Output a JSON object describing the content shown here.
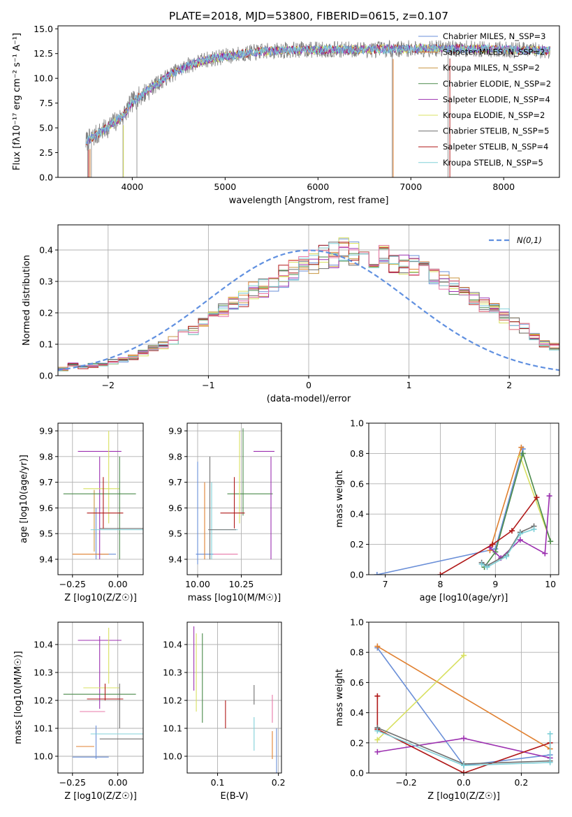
{
  "colors": {
    "chabrier_miles": "#6a8fd8",
    "salpeter_miles": "#e08030",
    "kroupa_miles": "#c89640",
    "chabrier_elodie": "#4a8a4a",
    "salpeter_elodie": "#9c30b0",
    "kroupa_elodie": "#d8e060",
    "chabrier_stelib": "#707070",
    "salpeter_stelib": "#b01818",
    "kroupa_stelib": "#80d0d8",
    "gauss": "#6090e0",
    "pink": "#e878a8"
  },
  "chart_data": [
    {
      "id": "spectrum",
      "type": "line",
      "title": "PLATE=2018, MJD=53800, FIBERID=0615, z=0.107",
      "xlabel": "wavelength [Angstrom, rest frame]",
      "ylabel": "Flux [fλ10⁻¹⁷ erg cm⁻² s⁻¹ A⁻¹]",
      "xlim": [
        3200,
        8600
      ],
      "ylim": [
        0,
        15.3
      ],
      "xticks": [
        4000,
        5000,
        6000,
        7000,
        8000
      ],
      "yticks": [
        0.0,
        2.5,
        5.0,
        7.5,
        10.0,
        12.5,
        15.0
      ],
      "continuum": {
        "x": [
          3500,
          3700,
          3900,
          4000,
          4200,
          4400,
          4600,
          4800,
          5000,
          5200,
          5400,
          5600,
          5800,
          6000,
          6200,
          6500,
          7000,
          7500,
          8000,
          8500
        ],
        "y": [
          3.6,
          4.8,
          6.2,
          7.6,
          9.0,
          10.3,
          11.3,
          11.9,
          12.2,
          12.5,
          12.7,
          12.8,
          12.9,
          12.9,
          12.9,
          12.9,
          13.0,
          13.0,
          12.9,
          12.8
        ]
      },
      "legend": [
        {
          "label": "Chabrier MILES, N_SSP=3",
          "color_key": "chabrier_miles"
        },
        {
          "label": "Salpeter MILES, N_SSP=2",
          "color_key": "salpeter_miles"
        },
        {
          "label": "Kroupa MILES, N_SSP=2",
          "color_key": "kroupa_miles"
        },
        {
          "label": "Chabrier ELODIE, N_SSP=2",
          "color_key": "chabrier_elodie"
        },
        {
          "label": "Salpeter ELODIE, N_SSP=4",
          "color_key": "salpeter_elodie"
        },
        {
          "label": "Kroupa ELODIE, N_SSP=2",
          "color_key": "kroupa_elodie"
        },
        {
          "label": "Chabrier STELIB, N_SSP=5",
          "color_key": "chabrier_stelib"
        },
        {
          "label": "Salpeter STELIB, N_SSP=4",
          "color_key": "salpeter_stelib"
        },
        {
          "label": "Kroupa STELIB, N_SSP=5",
          "color_key": "kroupa_stelib"
        }
      ],
      "legend_placement": "upper right",
      "grid": false
    },
    {
      "id": "residuals",
      "type": "histogram",
      "xlabel": "(data-model)/error",
      "ylabel": "Normed distribution",
      "xlim": [
        -2.5,
        2.5
      ],
      "ylim": [
        0,
        0.48
      ],
      "xticks": [
        -2,
        -1,
        0,
        1,
        2
      ],
      "yticks": [
        0.0,
        0.1,
        0.2,
        0.3,
        0.4
      ],
      "bin_width": 0.1,
      "bin_start": -2.5,
      "mean_values": [
        0.022,
        0.035,
        0.03,
        0.032,
        0.038,
        0.045,
        0.052,
        0.06,
        0.072,
        0.085,
        0.098,
        0.11,
        0.13,
        0.148,
        0.17,
        0.19,
        0.21,
        0.23,
        0.25,
        0.265,
        0.28,
        0.3,
        0.315,
        0.33,
        0.345,
        0.36,
        0.375,
        0.39,
        0.4,
        0.39,
        0.39,
        0.385,
        0.38,
        0.36,
        0.35,
        0.345,
        0.33,
        0.315,
        0.3,
        0.28,
        0.26,
        0.245,
        0.225,
        0.21,
        0.19,
        0.17,
        0.15,
        0.125,
        0.105,
        0.09,
        0.078,
        0.072,
        0.065,
        0.06,
        0.055,
        0.048,
        0.042,
        0.04,
        0.035,
        0.032,
        0.03,
        0.03,
        0.028,
        0.025,
        0.02,
        0.018,
        0.018,
        0.016,
        0.014,
        0.013,
        0.012,
        0.012,
        0.012,
        0.012,
        0.012,
        0.012,
        0.012,
        0.012,
        0.012,
        0.012
      ],
      "series_colors": [
        "chabrier_miles",
        "salpeter_miles",
        "kroupa_miles",
        "chabrier_elodie",
        "salpeter_elodie",
        "kroupa_elodie",
        "chabrier_stelib",
        "salpeter_stelib",
        "kroupa_stelib",
        "pink"
      ],
      "gaussian": {
        "label": "N(0,1)",
        "color_key": "gauss",
        "style": "dashed"
      },
      "legend_placement": "upper right",
      "grid": true
    },
    {
      "id": "age_vs_Z",
      "type": "errorbar",
      "xlabel": "Z [log10(Z/Z☉)]",
      "ylabel": "age  [log10(age/yr)]",
      "xlim": [
        -0.33,
        0.14
      ],
      "ylim": [
        9.34,
        9.93
      ],
      "xticks": [
        -0.25,
        0.0
      ],
      "xticklabels": [
        "−0.25",
        "0.00"
      ],
      "yticks": [
        9.4,
        9.5,
        9.6,
        9.7,
        9.8,
        9.9
      ],
      "points": [
        {
          "color_key": "chabrier_miles",
          "x": -0.06,
          "xerr": 0.05,
          "y": 9.42,
          "yerr": 0.0
        },
        {
          "color_key": "chabrier_miles",
          "x": -0.12,
          "xerr": 0.0,
          "y": 9.5,
          "yerr": 0.1
        },
        {
          "color_key": "salpeter_miles",
          "x": -0.15,
          "xerr": 0.1,
          "y": 9.42,
          "yerr": 0.0
        },
        {
          "color_key": "kroupa_miles",
          "x": -0.13,
          "xerr": 0.0,
          "y": 9.55,
          "yerr": 0.12
        },
        {
          "color_key": "salpeter_elodie",
          "x": -0.1,
          "xerr": 0.12,
          "y": 9.82,
          "yerr": 0.0
        },
        {
          "color_key": "salpeter_elodie",
          "x": -0.1,
          "xerr": 0.0,
          "y": 9.6,
          "yerr": 0.2
        },
        {
          "color_key": "kroupa_elodie",
          "x": -0.05,
          "xerr": 0.0,
          "y": 9.72,
          "yerr": 0.18
        },
        {
          "color_key": "kroupa_elodie",
          "x": -0.09,
          "xerr": 0.1,
          "y": 9.675,
          "yerr": 0.0
        },
        {
          "color_key": "chabrier_elodie",
          "x": -0.1,
          "xerr": 0.2,
          "y": 9.655,
          "yerr": 0.0
        },
        {
          "color_key": "chabrier_elodie",
          "x": 0.01,
          "xerr": 0.0,
          "y": 9.6,
          "yerr": 0.2
        },
        {
          "color_key": "chabrier_stelib",
          "x": 0.02,
          "xerr": 0.12,
          "y": 9.52,
          "yerr": 0.0
        },
        {
          "color_key": "salpeter_stelib",
          "x": -0.07,
          "xerr": 0.1,
          "y": 9.58,
          "yerr": 0.0
        },
        {
          "color_key": "salpeter_stelib",
          "x": -0.08,
          "xerr": 0.0,
          "y": 9.62,
          "yerr": 0.1
        },
        {
          "color_key": "kroupa_stelib",
          "x": 0.0,
          "xerr": 0.15,
          "y": 9.515,
          "yerr": 0.0
        }
      ],
      "grid": true
    },
    {
      "id": "age_vs_mass",
      "type": "errorbar",
      "xlabel": "mass [log10(M/M☉)]",
      "ylabel": "",
      "xlim": [
        9.94,
        10.48
      ],
      "ylim": [
        9.34,
        9.93
      ],
      "xticks": [
        10.0,
        10.25
      ],
      "xticklabels": [
        "10.00",
        "10.25"
      ],
      "yticks": [
        9.4,
        9.5,
        9.6,
        9.7,
        9.8,
        9.9
      ],
      "points": [
        {
          "color_key": "chabrier_miles",
          "x": 10.0,
          "xerr": 0.0,
          "y": 9.58,
          "yerr": 0.2
        },
        {
          "color_key": "chabrier_miles",
          "x": 10.04,
          "xerr": 0.05,
          "y": 9.42,
          "yerr": 0.0
        },
        {
          "color_key": "salpeter_miles",
          "x": 10.04,
          "xerr": 0.0,
          "y": 9.55,
          "yerr": 0.15
        },
        {
          "color_key": "kroupa_stelib",
          "x": 10.08,
          "xerr": 0.0,
          "y": 9.55,
          "yerr": 0.15
        },
        {
          "color_key": "pink",
          "x": 10.16,
          "xerr": 0.07,
          "y": 9.42,
          "yerr": 0.0
        },
        {
          "color_key": "chabrier_stelib",
          "x": 10.07,
          "xerr": 0.0,
          "y": 9.6,
          "yerr": 0.2
        },
        {
          "color_key": "chabrier_elodie",
          "x": 10.26,
          "xerr": 0.0,
          "y": 9.74,
          "yerr": 0.17
        },
        {
          "color_key": "chabrier_elodie",
          "x": 10.3,
          "xerr": 0.13,
          "y": 9.655,
          "yerr": 0.0
        },
        {
          "color_key": "kroupa_elodie",
          "x": 10.24,
          "xerr": 0.0,
          "y": 9.72,
          "yerr": 0.18
        },
        {
          "color_key": "salpeter_elodie",
          "x": 10.42,
          "xerr": 0.0,
          "y": 9.6,
          "yerr": 0.2
        },
        {
          "color_key": "salpeter_elodie",
          "x": 10.38,
          "xerr": 0.06,
          "y": 9.82,
          "yerr": 0.0
        },
        {
          "color_key": "salpeter_stelib",
          "x": 10.21,
          "xerr": 0.0,
          "y": 9.62,
          "yerr": 0.1
        },
        {
          "color_key": "salpeter_stelib",
          "x": 10.2,
          "xerr": 0.07,
          "y": 9.58,
          "yerr": 0.0
        },
        {
          "color_key": "kroupa_stelib",
          "x": 10.15,
          "xerr": 0.08,
          "y": 9.515,
          "yerr": 0.0
        },
        {
          "color_key": "chabrier_stelib",
          "x": 10.14,
          "xerr": 0.08,
          "y": 9.515,
          "yerr": 0.0
        }
      ],
      "grid": true
    },
    {
      "id": "weight_vs_age",
      "type": "line",
      "xlabel": "age  [log10(age/yr)]",
      "ylabel": "mass weight",
      "xlim": [
        6.7,
        10.15
      ],
      "ylim": [
        0,
        1.0
      ],
      "xticks": [
        7,
        8,
        9,
        10
      ],
      "yticks": [
        0.0,
        0.2,
        0.4,
        0.6,
        0.8,
        1.0
      ],
      "series": [
        {
          "color_key": "chabrier_miles",
          "x": [
            6.85,
            9.0,
            9.5
          ],
          "y": [
            0.0,
            0.17,
            0.83
          ]
        },
        {
          "color_key": "salpeter_miles",
          "x": [
            8.9,
            9.47
          ],
          "y": [
            0.16,
            0.84
          ]
        },
        {
          "color_key": "kroupa_elodie",
          "x": [
            9.45,
            10.0
          ],
          "y": [
            0.78,
            0.22
          ]
        },
        {
          "color_key": "chabrier_elodie",
          "x": [
            8.8,
            9.0,
            9.5,
            10.0
          ],
          "y": [
            0.05,
            0.15,
            0.8,
            0.22
          ]
        },
        {
          "color_key": "salpeter_elodie",
          "x": [
            8.9,
            9.1,
            9.45,
            9.9,
            9.98
          ],
          "y": [
            0.18,
            0.11,
            0.23,
            0.14,
            0.52
          ]
        },
        {
          "color_key": "salpeter_stelib",
          "x": [
            8.0,
            8.95,
            9.3,
            9.75
          ],
          "y": [
            0.0,
            0.2,
            0.29,
            0.51
          ]
        },
        {
          "color_key": "chabrier_stelib",
          "x": [
            8.75,
            8.85,
            9.2,
            9.45,
            9.7
          ],
          "y": [
            0.08,
            0.06,
            0.13,
            0.28,
            0.32
          ]
        },
        {
          "color_key": "kroupa_stelib",
          "x": [
            8.75,
            8.85,
            9.2,
            9.45,
            9.7
          ],
          "y": [
            0.07,
            0.05,
            0.12,
            0.27,
            0.3
          ]
        }
      ],
      "grid": true
    },
    {
      "id": "mass_vs_Z",
      "type": "errorbar",
      "xlabel": "Z [log10(Z/Z☉)]",
      "ylabel": "mass [log10(M/M☉)]",
      "xlim": [
        -0.33,
        0.14
      ],
      "ylim": [
        9.94,
        10.48
      ],
      "xticks": [
        -0.25,
        0.0
      ],
      "xticklabels": [
        "−0.25",
        "0.00"
      ],
      "yticks": [
        10.0,
        10.1,
        10.2,
        10.3,
        10.4
      ],
      "points": [
        {
          "color_key": "chabrier_miles",
          "x": -0.15,
          "xerr": 0.1,
          "y": 9.997,
          "yerr": 0.0
        },
        {
          "color_key": "chabrier_miles",
          "x": -0.12,
          "xerr": 0.0,
          "y": 10.05,
          "yerr": 0.06
        },
        {
          "color_key": "salpeter_miles",
          "x": -0.18,
          "xerr": 0.05,
          "y": 10.035,
          "yerr": 0.0
        },
        {
          "color_key": "pink",
          "x": -0.14,
          "xerr": 0.07,
          "y": 10.16,
          "yerr": 0.0
        },
        {
          "color_key": "salpeter_elodie",
          "x": -0.1,
          "xerr": 0.12,
          "y": 10.415,
          "yerr": 0.0
        },
        {
          "color_key": "salpeter_elodie",
          "x": -0.1,
          "xerr": 0.0,
          "y": 10.3,
          "yerr": 0.13
        },
        {
          "color_key": "kroupa_elodie",
          "x": -0.05,
          "xerr": 0.0,
          "y": 10.36,
          "yerr": 0.1
        },
        {
          "color_key": "kroupa_elodie",
          "x": -0.09,
          "xerr": 0.1,
          "y": 10.245,
          "yerr": 0.0
        },
        {
          "color_key": "chabrier_elodie",
          "x": -0.1,
          "xerr": 0.2,
          "y": 10.222,
          "yerr": 0.0
        },
        {
          "color_key": "chabrier_stelib",
          "x": 0.02,
          "xerr": 0.12,
          "y": 10.062,
          "yerr": 0.0
        },
        {
          "color_key": "chabrier_stelib",
          "x": 0.01,
          "xerr": 0.0,
          "y": 10.18,
          "yerr": 0.08
        },
        {
          "color_key": "salpeter_stelib",
          "x": -0.07,
          "xerr": 0.1,
          "y": 10.205,
          "yerr": 0.0
        },
        {
          "color_key": "salpeter_stelib",
          "x": -0.07,
          "xerr": 0.0,
          "y": 10.23,
          "yerr": 0.03
        },
        {
          "color_key": "kroupa_stelib",
          "x": 0.0,
          "xerr": 0.15,
          "y": 10.08,
          "yerr": 0.0
        }
      ],
      "grid": true
    },
    {
      "id": "mass_vs_ebv",
      "type": "errorbar",
      "xlabel": "E(B-V)",
      "ylabel": "",
      "xlim": [
        0.05,
        0.205
      ],
      "ylim": [
        9.94,
        10.48
      ],
      "xticks": [
        0.1,
        0.2
      ],
      "xticklabels": [
        "0.1",
        "0.2"
      ],
      "yticks": [
        10.0,
        10.1,
        10.2,
        10.3,
        10.4
      ],
      "points": [
        {
          "color_key": "salpeter_elodie",
          "x": 0.061,
          "xerr": 0.0,
          "y": 10.35,
          "yerr": 0.115
        },
        {
          "color_key": "kroupa_elodie",
          "x": 0.065,
          "xerr": 0.0,
          "y": 10.3,
          "yerr": 0.14
        },
        {
          "color_key": "chabrier_elodie",
          "x": 0.075,
          "xerr": 0.0,
          "y": 10.28,
          "yerr": 0.16
        },
        {
          "color_key": "salpeter_stelib",
          "x": 0.113,
          "xerr": 0.0,
          "y": 10.15,
          "yerr": 0.05
        },
        {
          "color_key": "chabrier_stelib",
          "x": 0.16,
          "xerr": 0.0,
          "y": 10.22,
          "yerr": 0.035
        },
        {
          "color_key": "kroupa_stelib",
          "x": 0.16,
          "xerr": 0.0,
          "y": 10.08,
          "yerr": 0.06
        },
        {
          "color_key": "salpeter_miles",
          "x": 0.19,
          "xerr": 0.0,
          "y": 10.04,
          "yerr": 0.05
        },
        {
          "color_key": "pink",
          "x": 0.19,
          "xerr": 0.0,
          "y": 10.17,
          "yerr": 0.05
        },
        {
          "color_key": "chabrier_miles",
          "x": 0.197,
          "xerr": 0.0,
          "y": 10.0,
          "yerr": 0.1
        }
      ],
      "grid": true
    },
    {
      "id": "weight_vs_Z",
      "type": "line",
      "xlabel": "Z [log10(Z/Z☉)]",
      "ylabel": "mass weight",
      "xlim": [
        -0.33,
        0.33
      ],
      "ylim": [
        0,
        1.0
      ],
      "xticks": [
        -0.2,
        0.0,
        0.2
      ],
      "xticklabels": [
        "−0.2",
        "0.0",
        "0.2"
      ],
      "yticks": [
        0.0,
        0.2,
        0.4,
        0.6,
        0.8,
        1.0
      ],
      "series": [
        {
          "color_key": "chabrier_miles",
          "x": [
            -0.3,
            0.0,
            0.3
          ],
          "y": [
            0.83,
            0.05,
            0.12
          ]
        },
        {
          "color_key": "salpeter_miles",
          "x": [
            -0.3,
            0.3
          ],
          "y": [
            0.84,
            0.16
          ]
        },
        {
          "color_key": "kroupa_elodie",
          "x": [
            -0.3,
            0.0
          ],
          "y": [
            0.22,
            0.78
          ]
        },
        {
          "color_key": "salpeter_elodie",
          "x": [
            -0.3,
            0.0,
            0.3
          ],
          "y": [
            0.14,
            0.23,
            0.1
          ]
        },
        {
          "color_key": "salpeter_stelib",
          "x": [
            -0.3,
            -0.3,
            0.0,
            0.3
          ],
          "y": [
            0.51,
            0.29,
            0.0,
            0.2
          ]
        },
        {
          "color_key": "chabrier_stelib",
          "x": [
            -0.3,
            0.0,
            0.3
          ],
          "y": [
            0.3,
            0.06,
            0.08
          ]
        },
        {
          "color_key": "kroupa_stelib",
          "x": [
            -0.3,
            0.0,
            0.3,
            0.3
          ],
          "y": [
            0.28,
            0.05,
            0.07,
            0.26
          ]
        }
      ],
      "grid": true
    }
  ]
}
